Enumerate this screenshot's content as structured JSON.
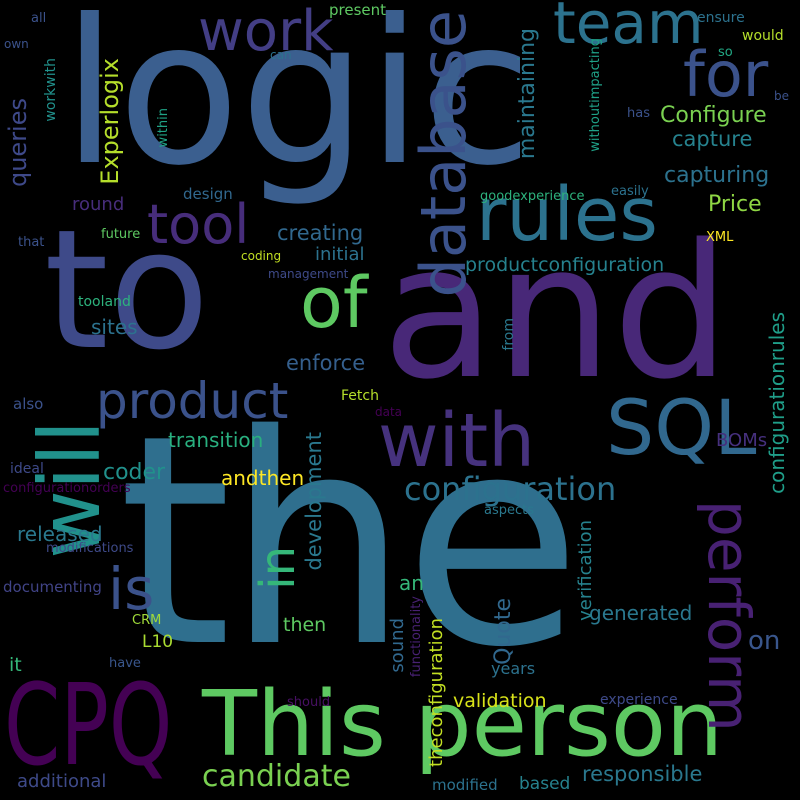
{
  "words": [
    {
      "text": "logic",
      "color": "#3b5f8f"
    },
    {
      "text": "the",
      "color": "#2f6f8e"
    },
    {
      "text": "and",
      "color": "#482878"
    },
    {
      "text": "to",
      "color": "#3e4a89"
    },
    {
      "text": "CPQ",
      "color": "#440154"
    },
    {
      "text": "This person",
      "color": "#5ec962"
    },
    {
      "text": "will",
      "color": "#21918c"
    },
    {
      "text": "rules",
      "color": "#2c728e"
    },
    {
      "text": "database",
      "color": "#3b528b"
    },
    {
      "text": "with",
      "color": "#46327e"
    },
    {
      "text": "SQL",
      "color": "#31688e"
    },
    {
      "text": "product",
      "color": "#3b528b"
    },
    {
      "text": "of",
      "color": "#5ec962"
    },
    {
      "text": "for",
      "color": "#3b528b"
    },
    {
      "text": "team",
      "color": "#2c728e"
    },
    {
      "text": "work",
      "color": "#433e85"
    },
    {
      "text": "tool",
      "color": "#472d7b"
    },
    {
      "text": "perform",
      "color": "#482173"
    },
    {
      "text": "is",
      "color": "#3b528b"
    },
    {
      "text": "in",
      "color": "#35b779"
    },
    {
      "text": "configuration",
      "color": "#2c728e"
    },
    {
      "text": "candidate",
      "color": "#7ad151"
    },
    {
      "text": "Configure",
      "color": "#7ad151"
    },
    {
      "text": "capture",
      "color": "#26828e"
    },
    {
      "text": "capturing",
      "color": "#2c728e"
    },
    {
      "text": "Price",
      "color": "#8fd744"
    },
    {
      "text": "queries",
      "color": "#3e4989"
    },
    {
      "text": "Experlogix",
      "color": "#b5de2b"
    },
    {
      "text": "maintaining",
      "color": "#2a788e"
    },
    {
      "text": "productconfiguration",
      "color": "#26828e"
    },
    {
      "text": "creating",
      "color": "#31688e"
    },
    {
      "text": "initial",
      "color": "#2c728e"
    },
    {
      "text": "enforce",
      "color": "#355f8d"
    },
    {
      "text": "sites",
      "color": "#2c728e"
    },
    {
      "text": "transition",
      "color": "#29af7f"
    },
    {
      "text": "development",
      "color": "#2a788e"
    },
    {
      "text": "coder",
      "color": "#21918c"
    },
    {
      "text": "andthen",
      "color": "#fde725"
    },
    {
      "text": "released",
      "color": "#2a788e"
    },
    {
      "text": "configurationrules",
      "color": "#1f9e89"
    },
    {
      "text": "Quote",
      "color": "#31688e"
    },
    {
      "text": "on",
      "color": "#39568c"
    },
    {
      "text": "generated",
      "color": "#2a788e"
    },
    {
      "text": "validation",
      "color": "#d8e219"
    },
    {
      "text": "responsible",
      "color": "#2a788e"
    },
    {
      "text": "additional",
      "color": "#3e4a89"
    },
    {
      "text": "based",
      "color": "#26828e"
    },
    {
      "text": "theconfiguration",
      "color": "#c2df23"
    },
    {
      "text": "verification",
      "color": "#26828e"
    },
    {
      "text": "BOMs",
      "color": "#46307e"
    },
    {
      "text": "an",
      "color": "#35b779"
    },
    {
      "text": "then",
      "color": "#5ec962"
    },
    {
      "text": "sound",
      "color": "#31688e"
    },
    {
      "text": "functionality",
      "color": "#482173"
    },
    {
      "text": "L10",
      "color": "#aadc32"
    },
    {
      "text": "CRM",
      "color": "#a0da39"
    },
    {
      "text": "it",
      "color": "#35b779"
    },
    {
      "text": "have",
      "color": "#39568c"
    },
    {
      "text": "years",
      "color": "#2c728e"
    },
    {
      "text": "should",
      "color": "#471063"
    },
    {
      "text": "experience",
      "color": "#3e4a89"
    },
    {
      "text": "modified",
      "color": "#2c728e"
    },
    {
      "text": "modifications",
      "color": "#3e4a89"
    },
    {
      "text": "documenting",
      "color": "#414487"
    },
    {
      "text": "configurationorders",
      "color": "#440154"
    },
    {
      "text": "ideal",
      "color": "#3e4a89"
    },
    {
      "text": "aspects",
      "color": "#2a788e"
    },
    {
      "text": "also",
      "color": "#3b528b"
    },
    {
      "text": "Fetch",
      "color": "#b5de2b"
    },
    {
      "text": "data",
      "color": "#440154"
    },
    {
      "text": "from",
      "color": "#2a788e"
    },
    {
      "text": "tooland",
      "color": "#2db27d"
    },
    {
      "text": "management",
      "color": "#3e4a89"
    },
    {
      "text": "coding",
      "color": "#c2df23"
    },
    {
      "text": "future",
      "color": "#5ec962"
    },
    {
      "text": "that",
      "color": "#3b528b"
    },
    {
      "text": "round",
      "color": "#472d7b"
    },
    {
      "text": "design",
      "color": "#31688e"
    },
    {
      "text": "goodexperience",
      "color": "#2db27d"
    },
    {
      "text": "easily",
      "color": "#2c728e"
    },
    {
      "text": "XML",
      "color": "#fde725"
    },
    {
      "text": "within",
      "color": "#20a386"
    },
    {
      "text": "has",
      "color": "#3b528b"
    },
    {
      "text": "withoutimpacting",
      "color": "#1fa187"
    },
    {
      "text": "ensure",
      "color": "#2c728e"
    },
    {
      "text": "would",
      "color": "#b5de2b"
    },
    {
      "text": "so",
      "color": "#22a884"
    },
    {
      "text": "be",
      "color": "#3b528b"
    },
    {
      "text": "present",
      "color": "#5ec962"
    },
    {
      "text": "can",
      "color": "#2c728e"
    },
    {
      "text": "workwith",
      "color": "#21918c"
    },
    {
      "text": "own",
      "color": "#3b528b"
    },
    {
      "text": "all",
      "color": "#3b528b"
    }
  ]
}
